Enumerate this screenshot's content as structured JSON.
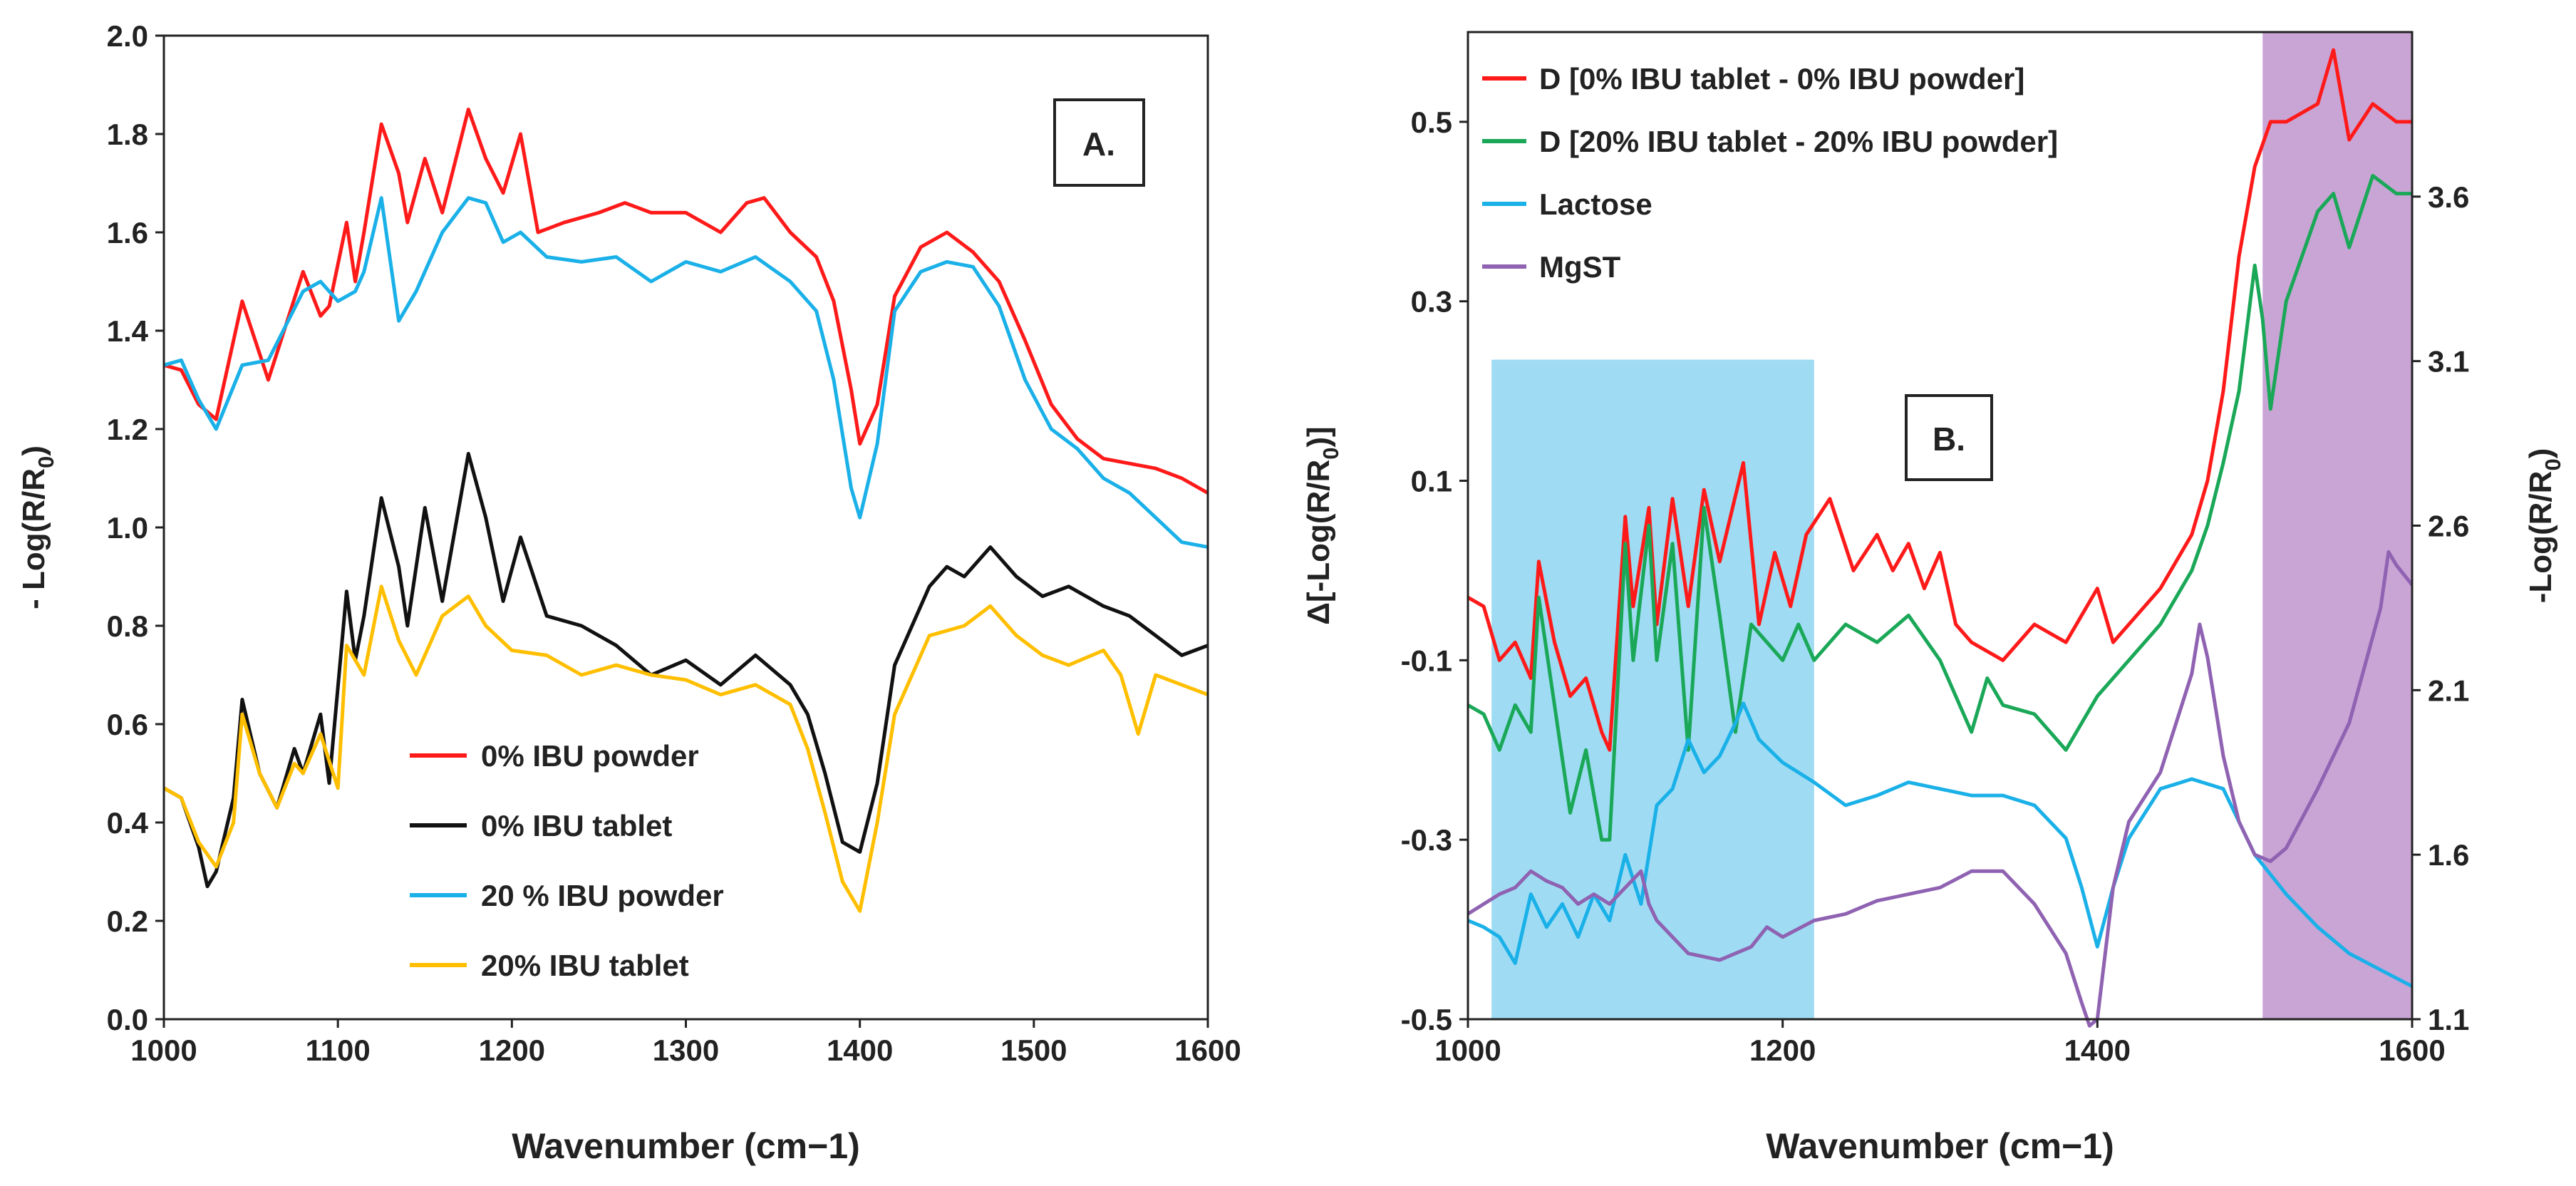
{
  "chart_data": [
    {
      "panel_label": "A.",
      "type": "line",
      "xlabel": "Wavenumber (cm−1)",
      "ylabel_base": "- Log(R/R",
      "ylabel_sub": "0",
      "ylabel_close": ")",
      "xlim": [
        1000,
        1600
      ],
      "ylim": [
        0,
        2
      ],
      "xticks": [
        1000,
        1100,
        1200,
        1300,
        1400,
        1500,
        1600
      ],
      "xtick_labels": [
        "1000",
        "1100",
        "1200",
        "1300",
        "1400",
        "1500",
        "1600"
      ],
      "yticks": [
        0,
        0.2,
        0.4,
        0.6,
        0.8,
        1.0,
        1.2,
        1.4,
        1.6,
        1.8,
        2.0
      ],
      "ytick_labels": [
        "0.0",
        "0.2",
        "0.4",
        "0.6",
        "0.8",
        "1.0",
        "1.2",
        "1.4",
        "1.6",
        "1.8",
        "2.0"
      ],
      "legend_position": "bottom-center",
      "series": [
        {
          "name": "0% IBU powder",
          "color": "#ff1a1a",
          "x": [
            1000,
            1010,
            1020,
            1030,
            1045,
            1060,
            1080,
            1090,
            1095,
            1105,
            1110,
            1115,
            1125,
            1135,
            1140,
            1150,
            1160,
            1175,
            1185,
            1195,
            1205,
            1215,
            1230,
            1250,
            1265,
            1280,
            1300,
            1320,
            1335,
            1345,
            1360,
            1375,
            1385,
            1395,
            1400,
            1410,
            1420,
            1435,
            1450,
            1465,
            1480,
            1495,
            1510,
            1525,
            1540,
            1555,
            1570,
            1585,
            1600
          ],
          "y": [
            1.33,
            1.32,
            1.25,
            1.22,
            1.46,
            1.3,
            1.52,
            1.43,
            1.45,
            1.62,
            1.5,
            1.6,
            1.82,
            1.72,
            1.62,
            1.75,
            1.64,
            1.85,
            1.75,
            1.68,
            1.8,
            1.6,
            1.62,
            1.64,
            1.66,
            1.64,
            1.64,
            1.6,
            1.66,
            1.67,
            1.6,
            1.55,
            1.46,
            1.28,
            1.17,
            1.25,
            1.47,
            1.57,
            1.6,
            1.56,
            1.5,
            1.38,
            1.25,
            1.18,
            1.14,
            1.13,
            1.12,
            1.1,
            1.07
          ]
        },
        {
          "name": "0% IBU tablet",
          "color": "#111111",
          "x": [
            1000,
            1010,
            1020,
            1025,
            1030,
            1040,
            1045,
            1055,
            1065,
            1075,
            1080,
            1090,
            1095,
            1105,
            1110,
            1115,
            1125,
            1135,
            1140,
            1150,
            1160,
            1175,
            1185,
            1195,
            1205,
            1220,
            1240,
            1260,
            1280,
            1300,
            1320,
            1340,
            1360,
            1370,
            1380,
            1390,
            1400,
            1410,
            1420,
            1440,
            1450,
            1460,
            1475,
            1490,
            1505,
            1520,
            1540,
            1555,
            1570,
            1585,
            1600
          ],
          "y": [
            0.47,
            0.45,
            0.35,
            0.27,
            0.3,
            0.45,
            0.65,
            0.5,
            0.43,
            0.55,
            0.5,
            0.62,
            0.48,
            0.87,
            0.73,
            0.82,
            1.06,
            0.92,
            0.8,
            1.04,
            0.85,
            1.15,
            1.02,
            0.85,
            0.98,
            0.82,
            0.8,
            0.76,
            0.7,
            0.73,
            0.68,
            0.74,
            0.68,
            0.62,
            0.5,
            0.36,
            0.34,
            0.48,
            0.72,
            0.88,
            0.92,
            0.9,
            0.96,
            0.9,
            0.86,
            0.88,
            0.84,
            0.82,
            0.78,
            0.74,
            0.76
          ]
        },
        {
          "name": "20 % IBU powder",
          "color": "#1ab0e8",
          "x": [
            1000,
            1010,
            1020,
            1030,
            1045,
            1060,
            1080,
            1090,
            1100,
            1110,
            1115,
            1125,
            1135,
            1145,
            1160,
            1175,
            1185,
            1195,
            1205,
            1220,
            1240,
            1260,
            1280,
            1300,
            1320,
            1340,
            1360,
            1375,
            1385,
            1395,
            1400,
            1410,
            1420,
            1435,
            1450,
            1465,
            1480,
            1495,
            1510,
            1525,
            1540,
            1555,
            1570,
            1585,
            1600
          ],
          "y": [
            1.33,
            1.34,
            1.26,
            1.2,
            1.33,
            1.34,
            1.48,
            1.5,
            1.46,
            1.48,
            1.52,
            1.67,
            1.42,
            1.48,
            1.6,
            1.67,
            1.66,
            1.58,
            1.6,
            1.55,
            1.54,
            1.55,
            1.5,
            1.54,
            1.52,
            1.55,
            1.5,
            1.44,
            1.3,
            1.08,
            1.02,
            1.17,
            1.44,
            1.52,
            1.54,
            1.53,
            1.45,
            1.3,
            1.2,
            1.16,
            1.1,
            1.07,
            1.02,
            0.97,
            0.96
          ]
        },
        {
          "name": "20% IBU tablet",
          "color": "#ffbf00",
          "x": [
            1000,
            1010,
            1020,
            1030,
            1040,
            1045,
            1055,
            1065,
            1075,
            1080,
            1090,
            1100,
            1105,
            1115,
            1125,
            1135,
            1145,
            1160,
            1175,
            1185,
            1200,
            1220,
            1240,
            1260,
            1280,
            1300,
            1320,
            1340,
            1360,
            1370,
            1380,
            1390,
            1400,
            1410,
            1420,
            1440,
            1460,
            1475,
            1490,
            1505,
            1520,
            1540,
            1550,
            1560,
            1570,
            1585,
            1600
          ],
          "y": [
            0.47,
            0.45,
            0.36,
            0.31,
            0.4,
            0.62,
            0.5,
            0.43,
            0.52,
            0.5,
            0.58,
            0.47,
            0.76,
            0.7,
            0.88,
            0.77,
            0.7,
            0.82,
            0.86,
            0.8,
            0.75,
            0.74,
            0.7,
            0.72,
            0.7,
            0.69,
            0.66,
            0.68,
            0.64,
            0.55,
            0.42,
            0.28,
            0.22,
            0.4,
            0.62,
            0.78,
            0.8,
            0.84,
            0.78,
            0.74,
            0.72,
            0.75,
            0.7,
            0.58,
            0.7,
            0.68,
            0.66
          ]
        }
      ]
    },
    {
      "panel_label": "B.",
      "type": "line",
      "xlabel": "Wavenumber (cm−1)",
      "ylabel_left_base": "Δ[-Log(R/R",
      "ylabel_left_sub": "0",
      "ylabel_left_close": ")]",
      "ylabel_right_base": "-Log(R/R",
      "ylabel_right_sub": "0",
      "ylabel_right_close": ")",
      "xlim": [
        1000,
        1600
      ],
      "ylim_left": [
        -0.5,
        0.6
      ],
      "ylim_right": [
        1.1,
        4.1
      ],
      "xticks": [
        1000,
        1200,
        1400,
        1600
      ],
      "xtick_labels": [
        "1000",
        "1200",
        "1400",
        "1600"
      ],
      "yticks_left": [
        -0.5,
        -0.3,
        -0.1,
        0.1,
        0.3,
        0.5
      ],
      "ytick_labels_left": [
        "-0.5",
        "-0.3",
        "-0.1",
        "0.1",
        "0.3",
        "0.5"
      ],
      "yticks_right": [
        1.1,
        1.6,
        2.1,
        2.6,
        3.1,
        3.6
      ],
      "ytick_labels_right": [
        "1.1",
        "1.6",
        "2.1",
        "2.6",
        "3.1",
        "3.6"
      ],
      "legend_position": "top-left",
      "highlight_regions": [
        {
          "x_from": 1015,
          "x_to": 1220,
          "y_from": -0.5,
          "y_to": 0.235,
          "color": "#9fdcf3"
        },
        {
          "x_from": 1505,
          "x_to": 1600,
          "y_from": -0.5,
          "y_to": 0.6,
          "color": "#c9a5d6"
        }
      ],
      "series": [
        {
          "name": "D [0% IBU tablet - 0% IBU powder]",
          "color": "#ff1a1a",
          "axis": "left",
          "x": [
            1000,
            1010,
            1020,
            1030,
            1040,
            1045,
            1055,
            1065,
            1075,
            1085,
            1090,
            1100,
            1105,
            1115,
            1120,
            1130,
            1140,
            1150,
            1160,
            1175,
            1185,
            1195,
            1205,
            1215,
            1230,
            1245,
            1260,
            1270,
            1280,
            1290,
            1300,
            1310,
            1320,
            1340,
            1360,
            1380,
            1400,
            1410,
            1420,
            1440,
            1460,
            1470,
            1480,
            1490,
            1500,
            1510,
            1520,
            1540,
            1550,
            1560,
            1575,
            1590,
            1600
          ],
          "y": [
            -0.03,
            -0.04,
            -0.1,
            -0.08,
            -0.12,
            0.01,
            -0.08,
            -0.14,
            -0.12,
            -0.18,
            -0.2,
            0.06,
            -0.04,
            0.07,
            -0.06,
            0.08,
            -0.04,
            0.09,
            0.01,
            0.12,
            -0.06,
            0.02,
            -0.04,
            0.04,
            0.08,
            0.0,
            0.04,
            0.0,
            0.03,
            -0.02,
            0.02,
            -0.06,
            -0.08,
            -0.1,
            -0.06,
            -0.08,
            -0.02,
            -0.08,
            -0.06,
            -0.02,
            0.04,
            0.1,
            0.2,
            0.35,
            0.45,
            0.5,
            0.5,
            0.52,
            0.58,
            0.48,
            0.52,
            0.5,
            0.5
          ]
        },
        {
          "name": "D [20% IBU tablet - 20% IBU powder]",
          "color": "#1aa858",
          "axis": "left",
          "x": [
            1000,
            1010,
            1020,
            1030,
            1040,
            1045,
            1055,
            1065,
            1075,
            1085,
            1090,
            1100,
            1105,
            1115,
            1120,
            1130,
            1140,
            1150,
            1160,
            1170,
            1180,
            1190,
            1200,
            1210,
            1220,
            1240,
            1260,
            1280,
            1300,
            1320,
            1330,
            1340,
            1360,
            1380,
            1400,
            1420,
            1440,
            1460,
            1470,
            1480,
            1490,
            1500,
            1505,
            1510,
            1520,
            1540,
            1550,
            1560,
            1575,
            1590,
            1600
          ],
          "y": [
            -0.15,
            -0.16,
            -0.2,
            -0.15,
            -0.18,
            -0.03,
            -0.15,
            -0.27,
            -0.2,
            -0.3,
            -0.3,
            0.03,
            -0.1,
            0.05,
            -0.1,
            0.03,
            -0.2,
            0.07,
            -0.05,
            -0.18,
            -0.06,
            -0.08,
            -0.1,
            -0.06,
            -0.1,
            -0.06,
            -0.08,
            -0.05,
            -0.1,
            -0.18,
            -0.12,
            -0.15,
            -0.16,
            -0.2,
            -0.14,
            -0.1,
            -0.06,
            0.0,
            0.05,
            0.12,
            0.2,
            0.34,
            0.28,
            0.18,
            0.3,
            0.4,
            0.42,
            0.36,
            0.44,
            0.42,
            0.42
          ]
        },
        {
          "name": "Lactose",
          "color": "#1ab0e8",
          "axis": "right",
          "x": [
            1000,
            1010,
            1020,
            1030,
            1040,
            1050,
            1060,
            1070,
            1080,
            1090,
            1100,
            1110,
            1120,
            1130,
            1140,
            1150,
            1160,
            1170,
            1175,
            1185,
            1200,
            1220,
            1240,
            1260,
            1280,
            1300,
            1320,
            1340,
            1360,
            1380,
            1390,
            1400,
            1410,
            1420,
            1440,
            1460,
            1480,
            1500,
            1520,
            1540,
            1560,
            1580,
            1600
          ],
          "y": [
            1.4,
            1.38,
            1.35,
            1.27,
            1.48,
            1.38,
            1.45,
            1.35,
            1.48,
            1.4,
            1.6,
            1.45,
            1.75,
            1.8,
            1.95,
            1.85,
            1.9,
            2.0,
            2.06,
            1.95,
            1.88,
            1.82,
            1.75,
            1.78,
            1.82,
            1.8,
            1.78,
            1.78,
            1.75,
            1.65,
            1.5,
            1.32,
            1.5,
            1.65,
            1.8,
            1.83,
            1.8,
            1.6,
            1.48,
            1.38,
            1.3,
            1.25,
            1.2
          ]
        },
        {
          "name": "MgST",
          "color": "#8f62b2",
          "axis": "right",
          "x": [
            1000,
            1010,
            1020,
            1030,
            1040,
            1050,
            1060,
            1070,
            1080,
            1090,
            1100,
            1110,
            1115,
            1120,
            1130,
            1140,
            1160,
            1180,
            1190,
            1200,
            1220,
            1240,
            1260,
            1280,
            1300,
            1320,
            1340,
            1360,
            1380,
            1390,
            1395,
            1400,
            1410,
            1420,
            1440,
            1450,
            1460,
            1465,
            1470,
            1480,
            1490,
            1500,
            1510,
            1520,
            1540,
            1560,
            1580,
            1585,
            1590,
            1600
          ],
          "y": [
            1.42,
            1.45,
            1.48,
            1.5,
            1.55,
            1.52,
            1.5,
            1.45,
            1.48,
            1.45,
            1.5,
            1.55,
            1.45,
            1.4,
            1.35,
            1.3,
            1.28,
            1.32,
            1.38,
            1.35,
            1.4,
            1.42,
            1.46,
            1.48,
            1.5,
            1.55,
            1.55,
            1.45,
            1.3,
            1.15,
            1.08,
            1.1,
            1.5,
            1.7,
            1.85,
            2.0,
            2.15,
            2.3,
            2.2,
            1.9,
            1.7,
            1.6,
            1.58,
            1.62,
            1.8,
            2.0,
            2.35,
            2.52,
            2.48,
            2.42
          ]
        }
      ]
    }
  ]
}
